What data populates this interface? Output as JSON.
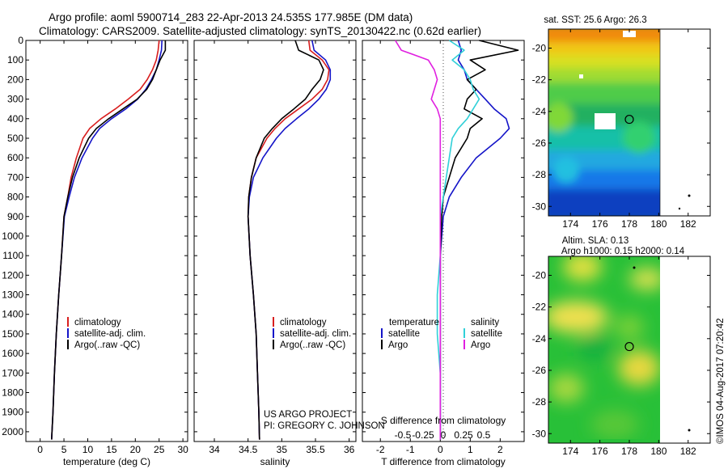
{
  "title": {
    "line1": "Argo profile: aoml 5900714_283 22-Apr-2013 24.535S 177.985E (DM data)",
    "line2": "Climatology: CARS2009. Satellite-adjusted climatology: synTS_20130422.nc (0.62d earlier)"
  },
  "colors": {
    "climatology": "#d81e1e",
    "satellite": "#1414c8",
    "argo": "#000000",
    "satellite_s": "#30d0d8",
    "argo_s": "#e020e0"
  },
  "project": {
    "line1": "US ARGO PROJECT",
    "line2": "PI: GREGORY C. JOHNSON"
  },
  "timestamp": "©IMOS 04-Aug-2017 07:20:42",
  "map_sst": {
    "title": "sat. SST: 25.6 Argo: 26.3"
  },
  "map_sla": {
    "title1": "Altim. SLA: 0.13",
    "title2": "Argo h1000: 0.15 h2000: 0.14"
  },
  "chart_data": [
    {
      "type": "line",
      "xlabel": "temperature (deg C)",
      "ylabel": "",
      "xlim": [
        -3,
        31
      ],
      "ylim": [
        2050,
        0
      ],
      "xticks": [
        0,
        5,
        10,
        15,
        20,
        25,
        30
      ],
      "yticks": [
        0,
        100,
        200,
        300,
        400,
        500,
        600,
        700,
        800,
        900,
        1000,
        1100,
        1200,
        1300,
        1400,
        1500,
        1600,
        1700,
        1800,
        1900,
        2000
      ],
      "legend": [
        "climatology",
        "satellite-adj. clim.",
        "Argo(..raw -QC)"
      ],
      "series": [
        {
          "name": "climatology",
          "color": "#d81e1e",
          "x": [
            25.0,
            24.8,
            24.4,
            23.6,
            22.5,
            21.0,
            18.5,
            15.8,
            12.8,
            10.4,
            9.0,
            7.6,
            6.5,
            5.8,
            5.0,
            4.5,
            3.9,
            3.4,
            3.0,
            2.7,
            2.4
          ],
          "y": [
            0,
            50,
            100,
            150,
            200,
            250,
            300,
            350,
            400,
            450,
            500,
            600,
            700,
            800,
            900,
            1100,
            1300,
            1500,
            1700,
            1900,
            2040
          ]
        },
        {
          "name": "satellite-adj. clim.",
          "color": "#1414c8",
          "x": [
            25.6,
            25.5,
            25.0,
            24.4,
            23.4,
            22.2,
            20.5,
            18.0,
            15.0,
            12.5,
            11.0,
            8.8,
            7.2,
            6.1,
            5.1,
            4.5,
            3.9,
            3.4,
            3.0,
            2.7,
            2.4
          ],
          "y": [
            0,
            50,
            100,
            150,
            200,
            250,
            300,
            350,
            400,
            450,
            500,
            600,
            700,
            800,
            900,
            1100,
            1300,
            1500,
            1700,
            1900,
            2040
          ]
        },
        {
          "name": "Argo(..raw -QC)",
          "color": "#000000",
          "x": [
            26.3,
            26.3,
            25.2,
            24.4,
            23.6,
            22.4,
            20.4,
            17.4,
            14.4,
            11.8,
            10.2,
            8.2,
            6.8,
            5.8,
            5.0,
            4.5,
            3.9,
            3.4,
            3.0,
            2.7,
            2.4
          ],
          "y": [
            0,
            50,
            100,
            150,
            200,
            250,
            300,
            350,
            400,
            450,
            500,
            600,
            700,
            800,
            900,
            1100,
            1300,
            1500,
            1700,
            1900,
            2040
          ]
        }
      ]
    },
    {
      "type": "line",
      "xlabel": "salinity",
      "ylabel": "",
      "xlim": [
        33.7,
        36.1
      ],
      "ylim": [
        2050,
        0
      ],
      "xticks": [
        34,
        34.5,
        35,
        35.5,
        36
      ],
      "legend": [
        "climatology",
        "satellite-adj. clim.",
        "Argo(..raw -QC)"
      ],
      "series": [
        {
          "name": "climatology",
          "color": "#d81e1e",
          "x": [
            35.4,
            35.42,
            35.6,
            35.7,
            35.68,
            35.6,
            35.45,
            35.25,
            35.05,
            34.9,
            34.78,
            34.62,
            34.55,
            34.51,
            34.5,
            34.53,
            34.58,
            34.62,
            34.64,
            34.66,
            34.67
          ],
          "y": [
            0,
            50,
            100,
            150,
            200,
            250,
            300,
            350,
            400,
            450,
            500,
            600,
            700,
            800,
            900,
            1100,
            1300,
            1500,
            1700,
            1900,
            2040
          ]
        },
        {
          "name": "satellite-adj. clim.",
          "color": "#1414c8",
          "x": [
            35.45,
            35.48,
            35.65,
            35.72,
            35.72,
            35.66,
            35.55,
            35.4,
            35.22,
            35.05,
            34.92,
            34.72,
            34.58,
            34.52,
            34.5,
            34.53,
            34.58,
            34.62,
            34.64,
            34.66,
            34.67
          ],
          "y": [
            0,
            50,
            100,
            150,
            200,
            250,
            300,
            350,
            400,
            450,
            500,
            600,
            700,
            800,
            900,
            1100,
            1300,
            1500,
            1700,
            1900,
            2040
          ]
        },
        {
          "name": "Argo(..raw -QC)",
          "color": "#000000",
          "x": [
            35.2,
            35.25,
            35.55,
            35.62,
            35.57,
            35.45,
            35.35,
            35.18,
            35.0,
            34.86,
            34.74,
            34.62,
            34.55,
            34.51,
            34.5,
            34.53,
            34.58,
            34.62,
            34.64,
            34.66,
            34.67
          ],
          "y": [
            0,
            50,
            100,
            150,
            200,
            250,
            300,
            350,
            400,
            450,
            500,
            600,
            700,
            800,
            900,
            1100,
            1300,
            1500,
            1700,
            1900,
            2040
          ]
        }
      ]
    },
    {
      "type": "line",
      "xlabel": "T difference from climatology",
      "xlabel2": "S difference from climatology",
      "ylabel": "",
      "xlim": [
        -2.6,
        2.8
      ],
      "ylim": [
        2050,
        0
      ],
      "xticks": [
        -2,
        -1,
        0,
        1,
        2
      ],
      "xticks2": [
        -0.5,
        -0.25,
        0,
        0.25,
        0.5
      ],
      "legend": {
        "temperature_title": "temperature",
        "salinity_title": "salinity",
        "satellite_t": "satellite",
        "argo_t": "Argo",
        "satellite_s": "satellite",
        "argo_s": "Argo"
      },
      "series": [
        {
          "name": "satellite",
          "color": "#1414c8",
          "x": [
            0.6,
            0.7,
            0.6,
            0.8,
            0.9,
            1.2,
            1.5,
            1.8,
            2.2,
            2.3,
            2.0,
            1.2,
            0.7,
            0.3,
            0.1,
            0.0,
            0.0,
            0.0,
            0.0,
            0.0,
            0.0
          ],
          "y": [
            0,
            50,
            100,
            150,
            200,
            250,
            300,
            350,
            400,
            450,
            500,
            600,
            700,
            800,
            900,
            1100,
            1300,
            1500,
            1700,
            1900,
            2040
          ]
        },
        {
          "name": "Argo",
          "color": "#000000",
          "x": [
            1.3,
            2.6,
            1.0,
            1.5,
            0.9,
            1.2,
            0.9,
            0.8,
            1.4,
            1.0,
            0.9,
            0.5,
            0.3,
            0.1,
            0.05,
            0.0,
            0.0,
            0.0,
            0.0,
            0.0,
            0.0
          ],
          "y": [
            0,
            50,
            100,
            150,
            200,
            250,
            300,
            350,
            400,
            450,
            500,
            600,
            700,
            800,
            900,
            1100,
            1300,
            1500,
            1700,
            1900,
            2040
          ]
        },
        {
          "name": "satellite",
          "color": "#30d0d8",
          "x": [
            0.3,
            0.8,
            0.4,
            0.8,
            1.0,
            1.1,
            1.3,
            1.1,
            0.9,
            0.6,
            0.4,
            0.3,
            0.2,
            0.1,
            0.0,
            0.0,
            -0.1,
            -0.1,
            0.0,
            0.0,
            0.0
          ],
          "y": [
            0,
            50,
            100,
            150,
            200,
            250,
            300,
            350,
            400,
            450,
            500,
            600,
            700,
            800,
            900,
            1100,
            1300,
            1500,
            1700,
            1900,
            2040
          ]
        },
        {
          "name": "Argo",
          "color": "#e020e0",
          "x": [
            -1.5,
            -1.3,
            -0.4,
            -0.2,
            -0.1,
            -0.2,
            -0.3,
            -0.1,
            0.0,
            0.0,
            0.0,
            0.0,
            0.0,
            0.0,
            0.0,
            0.0,
            0.0,
            0.0,
            0.0,
            0.0,
            0.0
          ],
          "y": [
            0,
            50,
            100,
            150,
            200,
            250,
            300,
            350,
            400,
            450,
            500,
            600,
            700,
            800,
            900,
            1100,
            1300,
            1500,
            1700,
            1900,
            2040
          ]
        }
      ]
    },
    {
      "type": "heatmap",
      "title": "sat. SST: 25.6 Argo: 26.3",
      "xlim": [
        172.5,
        183.5
      ],
      "ylim": [
        -30.6,
        -18.8
      ],
      "xticks": [
        174,
        176,
        178,
        180,
        182
      ],
      "yticks": [
        -20,
        -22,
        -24,
        -26,
        -28,
        -30
      ],
      "marker": {
        "lon": 178.0,
        "lat": -24.5
      }
    },
    {
      "type": "heatmap",
      "title": "Altim. SLA: 0.13",
      "subtitle": "Argo h1000: 0.15 h2000: 0.14",
      "xlim": [
        172.5,
        183.5
      ],
      "ylim": [
        -30.6,
        -18.8
      ],
      "xticks": [
        174,
        176,
        178,
        180,
        182
      ],
      "yticks": [
        -20,
        -22,
        -24,
        -26,
        -28,
        -30
      ],
      "marker": {
        "lon": 178.0,
        "lat": -24.5
      }
    }
  ]
}
